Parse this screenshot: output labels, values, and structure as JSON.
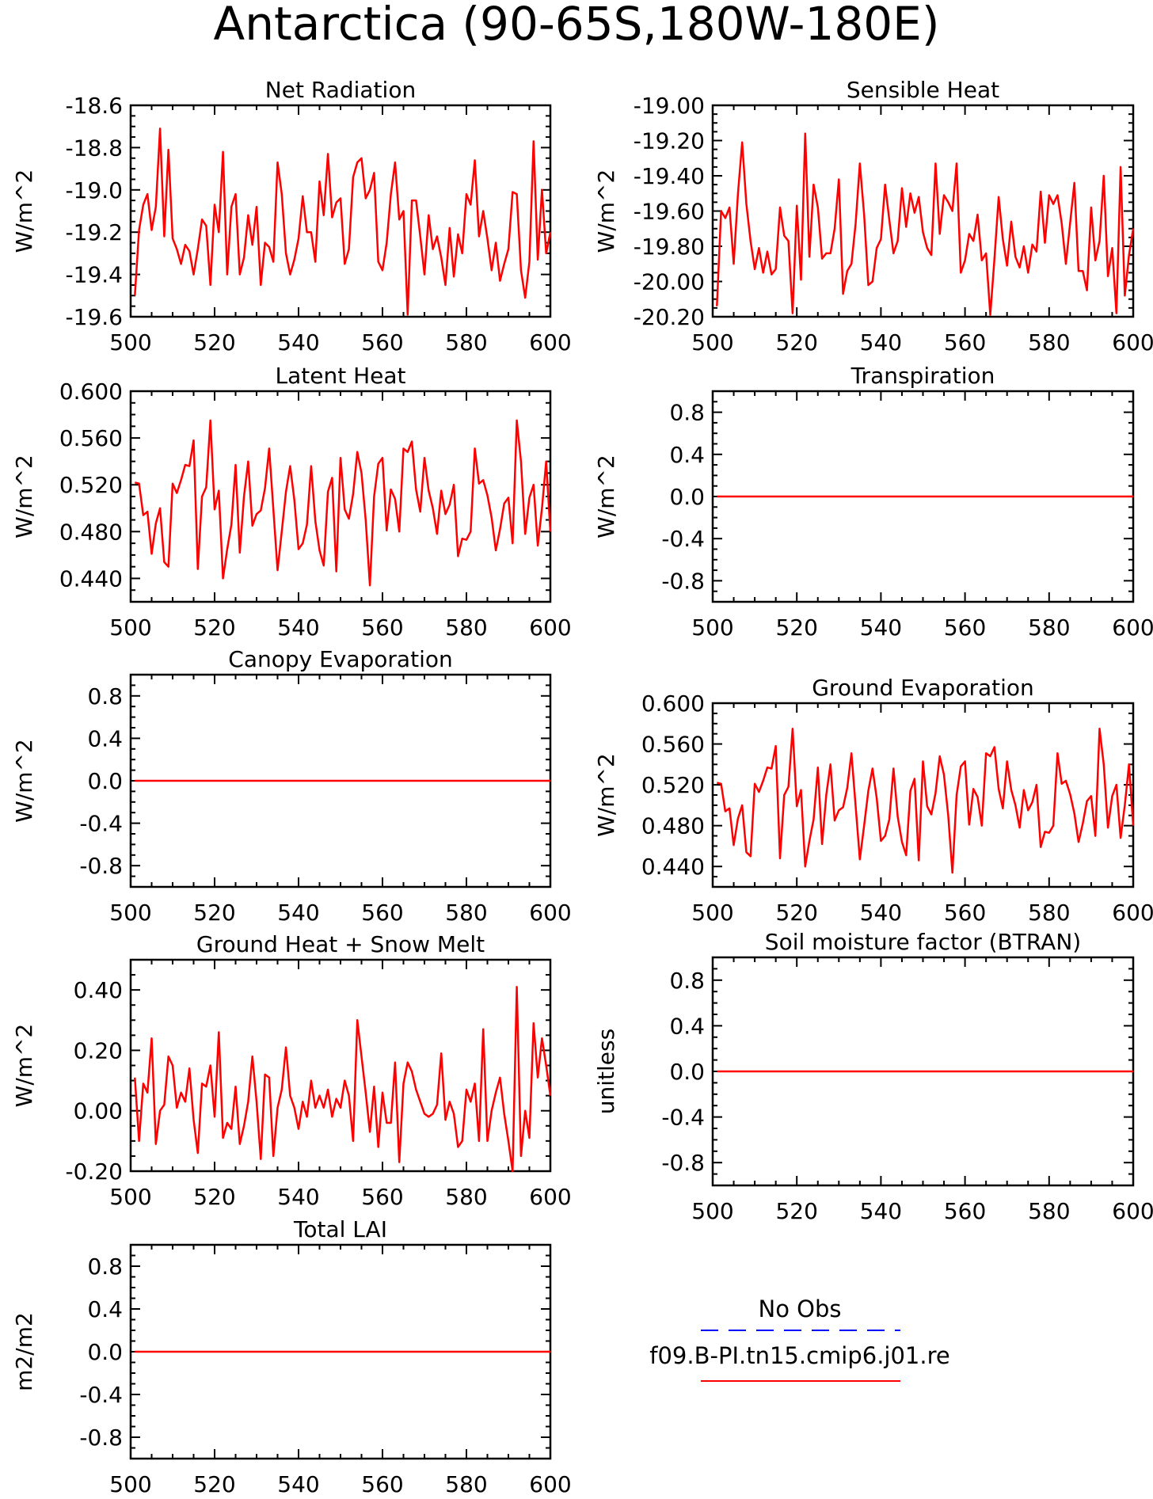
{
  "title": "Antarctica (90-65S,180W-180E)",
  "colors": {
    "model": "#ff0000",
    "obs": "#0000ff",
    "axis": "#000000"
  },
  "chart_data": [
    {
      "type": "line",
      "title": "Net Radiation",
      "ylabel": "W/m^2",
      "xlim": [
        500,
        600
      ],
      "ylim": [
        -19.6,
        -18.6
      ],
      "xticks": [
        500,
        520,
        540,
        560,
        580,
        600
      ],
      "xtick_labels": [
        "500",
        "520",
        "540",
        "560",
        "580",
        "600"
      ],
      "yticks": [
        -19.6,
        -19.4,
        -19.2,
        -19.0,
        -18.8,
        -18.6
      ],
      "ytick_labels": [
        "-19.6",
        "-19.4",
        "-19.2",
        "-19.0",
        "-18.8",
        "-18.6"
      ],
      "series": [
        {
          "name": "f09.B-PI.tn15.cmip6.j01.re",
          "x_start": 501,
          "x_step": 1,
          "values": [
            -19.5,
            -19.19,
            -19.07,
            -19.02,
            -19.19,
            -19.08,
            -18.71,
            -19.22,
            -18.81,
            -19.23,
            -19.28,
            -19.35,
            -19.26,
            -19.29,
            -19.4,
            -19.28,
            -19.14,
            -19.17,
            -19.45,
            -19.07,
            -19.2,
            -18.82,
            -19.4,
            -19.08,
            -19.02,
            -19.4,
            -19.32,
            -19.12,
            -19.26,
            -19.08,
            -19.45,
            -19.25,
            -19.27,
            -19.34,
            -18.87,
            -19.02,
            -19.3,
            -19.4,
            -19.33,
            -19.23,
            -19.03,
            -19.2,
            -19.2,
            -19.34,
            -18.96,
            -19.12,
            -18.83,
            -19.13,
            -19.06,
            -19.04,
            -19.35,
            -19.28,
            -18.94,
            -18.87,
            -18.85,
            -19.04,
            -19.0,
            -18.92,
            -19.34,
            -19.38,
            -19.25,
            -19.02,
            -18.87,
            -19.14,
            -19.1,
            -19.59,
            -19.05,
            -19.05,
            -19.22,
            -19.4,
            -19.12,
            -19.28,
            -19.22,
            -19.32,
            -19.45,
            -19.18,
            -19.41,
            -19.21,
            -19.3,
            -19.02,
            -19.07,
            -18.86,
            -19.22,
            -19.1,
            -19.23,
            -19.38,
            -19.25,
            -19.43,
            -19.35,
            -19.28,
            -19.01,
            -19.02,
            -19.38,
            -19.51,
            -19.34,
            -18.77,
            -19.33,
            -19.0,
            -19.3,
            -19.2
          ]
        }
      ]
    },
    {
      "type": "line",
      "title": "Sensible Heat",
      "ylabel": "W/m^2",
      "xlim": [
        500,
        600
      ],
      "ylim": [
        -20.2,
        -19.0
      ],
      "xticks": [
        500,
        520,
        540,
        560,
        580,
        600
      ],
      "xtick_labels": [
        "500",
        "520",
        "540",
        "560",
        "580",
        "600"
      ],
      "yticks": [
        -20.2,
        -20.0,
        -19.8,
        -19.6,
        -19.4,
        -19.2,
        -19.0
      ],
      "ytick_labels": [
        "-20.20",
        "-20.00",
        "-19.80",
        "-19.60",
        "-19.40",
        "-19.20",
        "-19.00"
      ],
      "series": [
        {
          "name": "f09.B-PI.tn15.cmip6.j01.re",
          "x_start": 501,
          "x_step": 1,
          "values": [
            -20.14,
            -19.6,
            -19.64,
            -19.58,
            -19.9,
            -19.5,
            -19.21,
            -19.56,
            -19.77,
            -19.93,
            -19.81,
            -19.95,
            -19.83,
            -19.96,
            -19.93,
            -19.58,
            -19.74,
            -19.77,
            -20.18,
            -19.57,
            -19.99,
            -19.16,
            -19.86,
            -19.45,
            -19.58,
            -19.87,
            -19.84,
            -19.84,
            -19.7,
            -19.42,
            -20.07,
            -19.94,
            -19.9,
            -19.67,
            -19.33,
            -19.62,
            -20.02,
            -20.0,
            -19.81,
            -19.76,
            -19.45,
            -19.65,
            -19.84,
            -19.77,
            -19.47,
            -19.69,
            -19.5,
            -19.61,
            -19.52,
            -19.72,
            -19.81,
            -19.85,
            -19.33,
            -19.73,
            -19.51,
            -19.55,
            -19.6,
            -19.33,
            -19.95,
            -19.88,
            -19.73,
            -19.77,
            -19.62,
            -19.88,
            -19.84,
            -20.19,
            -19.87,
            -19.52,
            -19.76,
            -19.91,
            -19.66,
            -19.86,
            -19.92,
            -19.8,
            -19.95,
            -19.79,
            -19.83,
            -19.49,
            -19.78,
            -19.51,
            -19.56,
            -19.51,
            -19.67,
            -19.9,
            -19.67,
            -19.44,
            -19.94,
            -19.94,
            -20.05,
            -19.58,
            -19.88,
            -19.77,
            -19.4,
            -19.97,
            -19.81,
            -20.18,
            -19.35,
            -20.08,
            -19.85,
            -19.7
          ]
        }
      ]
    },
    {
      "type": "line",
      "title": "Latent Heat",
      "ylabel": "W/m^2",
      "xlim": [
        500,
        600
      ],
      "ylim": [
        0.42,
        0.6
      ],
      "xticks": [
        500,
        520,
        540,
        560,
        580,
        600
      ],
      "xtick_labels": [
        "500",
        "520",
        "540",
        "560",
        "580",
        "600"
      ],
      "yticks": [
        0.44,
        0.48,
        0.52,
        0.56,
        0.6
      ],
      "ytick_labels": [
        "0.440",
        "0.480",
        "0.520",
        "0.560",
        "0.600"
      ],
      "series": [
        {
          "name": "f09.B-PI.tn15.cmip6.j01.re",
          "x_start": 501,
          "x_step": 1,
          "values": [
            0.522,
            0.521,
            0.494,
            0.497,
            0.461,
            0.487,
            0.5,
            0.454,
            0.45,
            0.521,
            0.513,
            0.524,
            0.537,
            0.536,
            0.558,
            0.448,
            0.51,
            0.518,
            0.575,
            0.499,
            0.515,
            0.44,
            0.465,
            0.486,
            0.537,
            0.462,
            0.51,
            0.54,
            0.485,
            0.495,
            0.498,
            0.517,
            0.551,
            0.499,
            0.447,
            0.48,
            0.514,
            0.536,
            0.507,
            0.465,
            0.47,
            0.486,
            0.536,
            0.489,
            0.464,
            0.451,
            0.514,
            0.526,
            0.446,
            0.543,
            0.499,
            0.491,
            0.512,
            0.548,
            0.53,
            0.49,
            0.434,
            0.51,
            0.538,
            0.543,
            0.481,
            0.516,
            0.508,
            0.48,
            0.551,
            0.548,
            0.557,
            0.516,
            0.497,
            0.543,
            0.515,
            0.5,
            0.478,
            0.515,
            0.495,
            0.503,
            0.52,
            0.459,
            0.474,
            0.473,
            0.48,
            0.551,
            0.521,
            0.524,
            0.511,
            0.492,
            0.464,
            0.482,
            0.504,
            0.509,
            0.47,
            0.575,
            0.54,
            0.478,
            0.509,
            0.52,
            0.468,
            0.5,
            0.54,
            0.48
          ]
        }
      ]
    },
    {
      "type": "line",
      "title": "Transpiration",
      "ylabel": "W/m^2",
      "xlim": [
        500,
        600
      ],
      "ylim": [
        -1,
        1
      ],
      "xticks": [
        500,
        520,
        540,
        560,
        580,
        600
      ],
      "xtick_labels": [
        "500",
        "520",
        "540",
        "560",
        "580",
        "600"
      ],
      "yticks": [
        -0.8,
        -0.4,
        0,
        0.4,
        0.8
      ],
      "ytick_labels": [
        "-0.8",
        "-0.4",
        "0.0",
        "0.4",
        "0.8"
      ],
      "series": [
        {
          "name": "f09.B-PI.tn15.cmip6.j01.re",
          "x_start": 501,
          "x_step": 99,
          "values": [
            0,
            0
          ]
        }
      ]
    },
    {
      "type": "line",
      "title": "Canopy Evaporation",
      "ylabel": "W/m^2",
      "xlim": [
        500,
        600
      ],
      "ylim": [
        -1,
        1
      ],
      "xticks": [
        500,
        520,
        540,
        560,
        580,
        600
      ],
      "xtick_labels": [
        "500",
        "520",
        "540",
        "560",
        "580",
        "600"
      ],
      "yticks": [
        -0.8,
        -0.4,
        0,
        0.4,
        0.8
      ],
      "ytick_labels": [
        "-0.8",
        "-0.4",
        "0.0",
        "0.4",
        "0.8"
      ],
      "series": [
        {
          "name": "f09.B-PI.tn15.cmip6.j01.re",
          "x_start": 501,
          "x_step": 99,
          "values": [
            0,
            0
          ]
        }
      ]
    },
    {
      "type": "line",
      "title": "Ground Evaporation",
      "ylabel": "W/m^2",
      "xlim": [
        500,
        600
      ],
      "ylim": [
        0.42,
        0.6
      ],
      "xticks": [
        500,
        520,
        540,
        560,
        580,
        600
      ],
      "xtick_labels": [
        "500",
        "520",
        "540",
        "560",
        "580",
        "600"
      ],
      "yticks": [
        0.44,
        0.48,
        0.52,
        0.56,
        0.6
      ],
      "ytick_labels": [
        "0.440",
        "0.480",
        "0.520",
        "0.560",
        "0.600"
      ],
      "series": [
        {
          "name": "f09.B-PI.tn15.cmip6.j01.re",
          "x_start": 501,
          "x_step": 1,
          "values": [
            0.522,
            0.521,
            0.494,
            0.497,
            0.461,
            0.487,
            0.5,
            0.454,
            0.45,
            0.521,
            0.513,
            0.524,
            0.537,
            0.536,
            0.558,
            0.448,
            0.51,
            0.518,
            0.575,
            0.499,
            0.515,
            0.44,
            0.465,
            0.486,
            0.537,
            0.462,
            0.51,
            0.54,
            0.485,
            0.495,
            0.498,
            0.517,
            0.551,
            0.499,
            0.447,
            0.48,
            0.514,
            0.536,
            0.507,
            0.465,
            0.47,
            0.486,
            0.536,
            0.489,
            0.464,
            0.451,
            0.514,
            0.526,
            0.446,
            0.543,
            0.499,
            0.491,
            0.512,
            0.548,
            0.53,
            0.49,
            0.434,
            0.51,
            0.538,
            0.543,
            0.481,
            0.516,
            0.508,
            0.48,
            0.551,
            0.548,
            0.557,
            0.516,
            0.497,
            0.543,
            0.515,
            0.5,
            0.478,
            0.515,
            0.495,
            0.503,
            0.52,
            0.459,
            0.474,
            0.473,
            0.48,
            0.551,
            0.521,
            0.524,
            0.511,
            0.492,
            0.464,
            0.482,
            0.504,
            0.509,
            0.47,
            0.575,
            0.54,
            0.478,
            0.509,
            0.52,
            0.468,
            0.5,
            0.54,
            0.48
          ]
        }
      ]
    },
    {
      "type": "line",
      "title": "Ground Heat + Snow Melt",
      "ylabel": "W/m^2",
      "xlim": [
        500,
        600
      ],
      "ylim": [
        -0.2,
        0.5
      ],
      "xticks": [
        500,
        520,
        540,
        560,
        580,
        600
      ],
      "xtick_labels": [
        "500",
        "520",
        "540",
        "560",
        "580",
        "600"
      ],
      "yticks": [
        -0.2,
        0,
        0.2,
        0.4
      ],
      "ytick_labels": [
        "-0.20",
        "0.00",
        "0.20",
        "0.40"
      ],
      "series": [
        {
          "name": "f09.B-PI.tn15.cmip6.j01.re",
          "x_start": 501,
          "x_step": 1,
          "values": [
            0.11,
            -0.1,
            0.09,
            0.06,
            0.24,
            -0.11,
            0.0,
            0.02,
            0.18,
            0.15,
            0.01,
            0.06,
            0.03,
            0.14,
            -0.03,
            -0.14,
            0.09,
            0.08,
            0.15,
            -0.02,
            0.26,
            -0.09,
            -0.04,
            -0.06,
            0.08,
            -0.11,
            -0.05,
            0.03,
            0.18,
            0.03,
            -0.16,
            0.12,
            0.11,
            -0.15,
            0.01,
            0.07,
            0.21,
            0.05,
            0.01,
            -0.06,
            0.03,
            -0.02,
            0.1,
            0.01,
            0.05,
            0.01,
            0.07,
            -0.02,
            0.04,
            0.01,
            0.1,
            0.05,
            -0.1,
            0.3,
            0.18,
            0.06,
            -0.07,
            0.08,
            -0.12,
            0.06,
            -0.04,
            -0.04,
            0.16,
            -0.17,
            0.09,
            0.16,
            0.13,
            0.07,
            0.03,
            -0.01,
            -0.02,
            -0.01,
            0.02,
            0.19,
            -0.03,
            0.03,
            -0.01,
            -0.12,
            -0.1,
            0.07,
            0.03,
            0.09,
            -0.1,
            0.27,
            -0.1,
            0.0,
            0.06,
            0.11,
            -0.01,
            -0.1,
            -0.2,
            0.41,
            -0.15,
            0.0,
            -0.09,
            0.29,
            0.11,
            0.24,
            0.15,
            0.05
          ]
        }
      ]
    },
    {
      "type": "line",
      "title": "Soil moisture factor (BTRAN)",
      "ylabel": "unitless",
      "xlim": [
        500,
        600
      ],
      "ylim": [
        -1,
        1
      ],
      "xticks": [
        500,
        520,
        540,
        560,
        580,
        600
      ],
      "xtick_labels": [
        "500",
        "520",
        "540",
        "560",
        "580",
        "600"
      ],
      "yticks": [
        -0.8,
        -0.4,
        0,
        0.4,
        0.8
      ],
      "ytick_labels": [
        "-0.8",
        "-0.4",
        "0.0",
        "0.4",
        "0.8"
      ],
      "series": [
        {
          "name": "f09.B-PI.tn15.cmip6.j01.re",
          "x_start": 501,
          "x_step": 99,
          "values": [
            0,
            0
          ]
        }
      ]
    },
    {
      "type": "line",
      "title": "Total LAI",
      "ylabel": "m2/m2",
      "xlim": [
        500,
        600
      ],
      "ylim": [
        -1,
        1
      ],
      "xticks": [
        500,
        520,
        540,
        560,
        580,
        600
      ],
      "xtick_labels": [
        "500",
        "520",
        "540",
        "560",
        "580",
        "600"
      ],
      "yticks": [
        -0.8,
        -0.4,
        0,
        0.4,
        0.8
      ],
      "ytick_labels": [
        "-0.8",
        "-0.4",
        "0.0",
        "0.4",
        "0.8"
      ],
      "series": [
        {
          "name": "f09.B-PI.tn15.cmip6.j01.re",
          "x_start": 501,
          "x_step": 99,
          "values": [
            0,
            0
          ]
        }
      ]
    }
  ],
  "legend": {
    "position": "bottom-right",
    "items": [
      {
        "label": "No Obs",
        "color": "#0000ff",
        "style": "dashed"
      },
      {
        "label": "f09.B-PI.tn15.cmip6.j01.re",
        "color": "#ff0000",
        "style": "solid"
      }
    ]
  }
}
